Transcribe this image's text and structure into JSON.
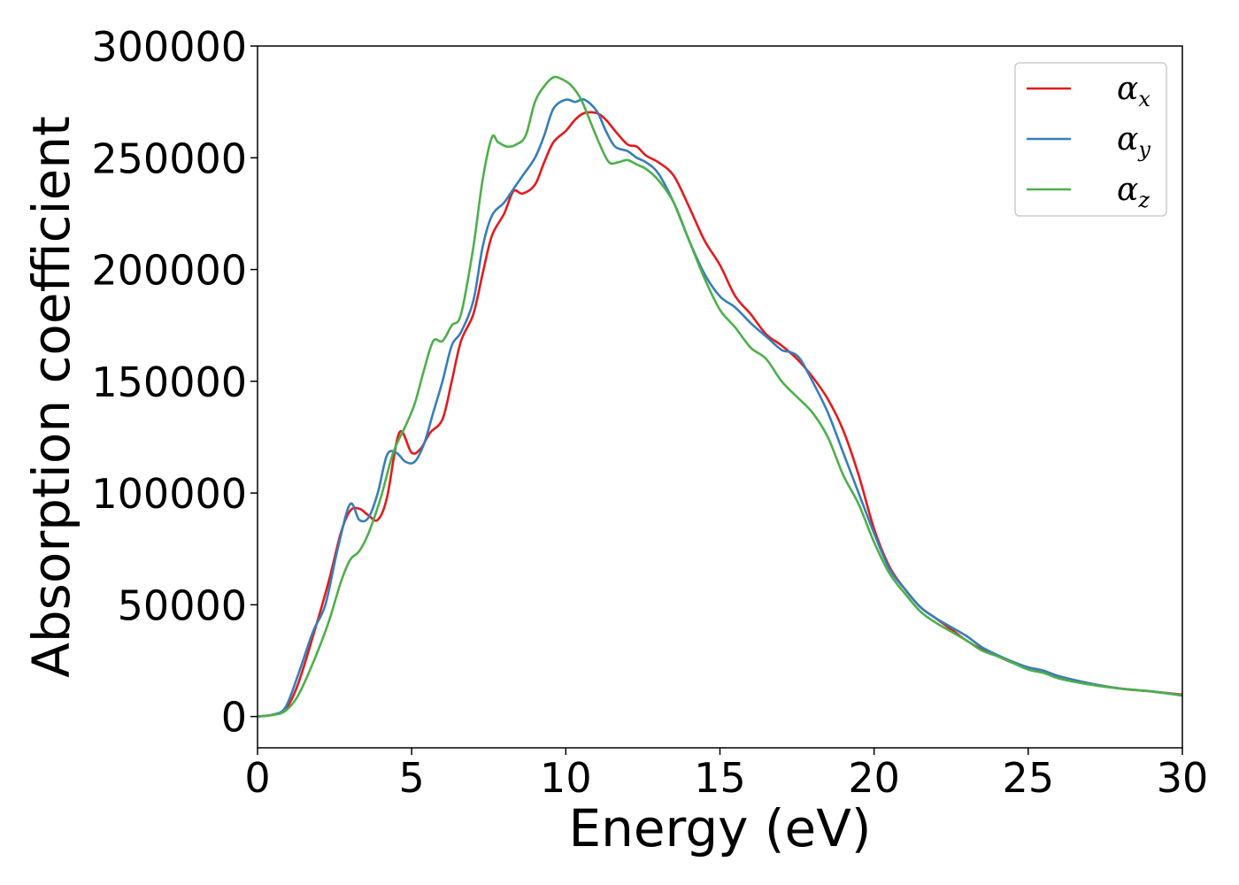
{
  "chart_data": {
    "type": "line",
    "title": "",
    "xlabel": "Energy (eV)",
    "ylabel": "Absorption coefficient",
    "xlim": [
      0,
      30
    ],
    "ylim": [
      -14000,
      300000
    ],
    "xticks": [
      0,
      5,
      10,
      15,
      20,
      25,
      30
    ],
    "yticks": [
      0,
      50000,
      100000,
      150000,
      200000,
      250000,
      300000
    ],
    "xtick_labels": [
      "0",
      "5",
      "10",
      "15",
      "20",
      "25",
      "30"
    ],
    "ytick_labels": [
      "0",
      "50000",
      "100000",
      "150000",
      "200000",
      "250000",
      "300000"
    ],
    "grid": false,
    "legend_position": "top-right",
    "series": [
      {
        "name": "α_x",
        "label_main": "α",
        "label_sub": "x",
        "color": "#e41a1c",
        "x": [
          0,
          0.5,
          0.9,
          1.3,
          1.8,
          2.3,
          2.7,
          3.0,
          3.3,
          3.6,
          3.9,
          4.2,
          4.6,
          5.0,
          5.3,
          5.6,
          6.0,
          6.3,
          6.6,
          7.0,
          7.3,
          7.6,
          8.0,
          8.3,
          8.6,
          9.0,
          9.3,
          9.6,
          10.0,
          10.3,
          10.6,
          11.0,
          11.3,
          11.6,
          12.0,
          12.3,
          12.6,
          13.0,
          13.5,
          14.0,
          14.5,
          15.0,
          15.5,
          16.0,
          16.5,
          17.0,
          17.5,
          18.0,
          18.5,
          19.0,
          19.5,
          20.0,
          20.5,
          21.0,
          21.5,
          22.0,
          22.5,
          23.0,
          23.5,
          24.0,
          24.5,
          25.0,
          25.5,
          26.0,
          27.0,
          28.0,
          29.0,
          30.0
        ],
        "y": [
          0,
          800,
          3000,
          14000,
          36000,
          60000,
          82000,
          92000,
          93000,
          90000,
          88000,
          98000,
          127000,
          118000,
          120000,
          127000,
          133000,
          150000,
          168000,
          180000,
          198000,
          215000,
          225000,
          235000,
          234000,
          238000,
          248000,
          257000,
          262000,
          267000,
          270000,
          270000,
          267000,
          262000,
          256000,
          255000,
          251000,
          248000,
          242000,
          228000,
          213000,
          202000,
          188000,
          180000,
          171000,
          166000,
          160000,
          152000,
          142000,
          128000,
          108000,
          84000,
          67000,
          57000,
          49000,
          44000,
          39000,
          34000,
          30000,
          27000,
          24000,
          22000,
          20500,
          18000,
          14800,
          12500,
          11200,
          9800
        ]
      },
      {
        "name": "α_y",
        "label_main": "α",
        "label_sub": "y",
        "color": "#377eb8",
        "x": [
          0,
          0.5,
          0.9,
          1.3,
          1.8,
          2.2,
          2.6,
          3.0,
          3.3,
          3.6,
          3.9,
          4.2,
          4.5,
          4.8,
          5.1,
          5.4,
          5.7,
          6.0,
          6.3,
          6.6,
          7.0,
          7.3,
          7.6,
          8.0,
          8.3,
          8.6,
          9.0,
          9.3,
          9.6,
          10.0,
          10.3,
          10.6,
          11.0,
          11.3,
          11.6,
          12.0,
          12.3,
          12.6,
          13.0,
          13.5,
          14.0,
          14.5,
          15.0,
          15.5,
          16.0,
          16.5,
          17.0,
          17.3,
          17.6,
          18.0,
          18.5,
          19.0,
          19.5,
          20.0,
          20.5,
          21.0,
          21.5,
          22.0,
          22.5,
          23.0,
          23.5,
          24.0,
          24.5,
          25.0,
          25.5,
          26.0,
          27.0,
          28.0,
          29.0,
          30.0
        ],
        "y": [
          0,
          900,
          4000,
          18000,
          38000,
          50000,
          75000,
          95000,
          88000,
          89000,
          100000,
          117000,
          118000,
          114000,
          114000,
          122000,
          136000,
          150000,
          166000,
          172000,
          186000,
          210000,
          224000,
          230000,
          236000,
          242000,
          250000,
          260000,
          272000,
          276000,
          275000,
          276000,
          271000,
          262000,
          255000,
          253000,
          250000,
          248000,
          243000,
          230000,
          213000,
          198000,
          188000,
          183000,
          176000,
          170000,
          164000,
          163000,
          160000,
          150000,
          136000,
          118000,
          100000,
          82000,
          66000,
          57000,
          49000,
          44000,
          40000,
          36000,
          31000,
          27500,
          24500,
          22000,
          20500,
          18000,
          14800,
          12500,
          11300,
          9500
        ]
      },
      {
        "name": "α_z",
        "label_main": "α",
        "label_sub": "z",
        "color": "#4daf4a",
        "x": [
          0,
          0.5,
          0.9,
          1.3,
          1.8,
          2.3,
          2.7,
          3.0,
          3.3,
          3.6,
          4.0,
          4.4,
          4.8,
          5.1,
          5.4,
          5.7,
          6.0,
          6.3,
          6.6,
          7.0,
          7.3,
          7.6,
          7.8,
          8.1,
          8.4,
          8.7,
          9.0,
          9.3,
          9.6,
          9.9,
          10.2,
          10.5,
          10.8,
          11.1,
          11.4,
          11.7,
          12.0,
          12.3,
          12.6,
          13.0,
          13.5,
          14.0,
          14.5,
          15.0,
          15.5,
          16.0,
          16.5,
          17.0,
          17.5,
          18.0,
          18.5,
          19.0,
          19.5,
          20.0,
          20.5,
          21.0,
          21.5,
          22.0,
          22.5,
          23.0,
          23.5,
          24.0,
          24.5,
          25.0,
          25.5,
          26.0,
          27.0,
          28.0,
          29.0,
          30.0
        ],
        "y": [
          0,
          700,
          2500,
          9000,
          24000,
          42000,
          60000,
          70000,
          74000,
          82000,
          98000,
          118000,
          130000,
          140000,
          155000,
          168000,
          168000,
          175000,
          180000,
          210000,
          240000,
          259000,
          257000,
          255000,
          256000,
          260000,
          275000,
          282000,
          286000,
          285000,
          282000,
          276000,
          266000,
          256000,
          248000,
          248000,
          249000,
          247000,
          245000,
          240000,
          230000,
          213000,
          196000,
          182000,
          174000,
          165000,
          160000,
          150000,
          143000,
          136000,
          125000,
          108000,
          95000,
          78000,
          64000,
          55000,
          47000,
          42000,
          38000,
          34000,
          29500,
          27000,
          24000,
          21000,
          19500,
          17000,
          14300,
          12500,
          11200,
          9400
        ]
      }
    ]
  }
}
